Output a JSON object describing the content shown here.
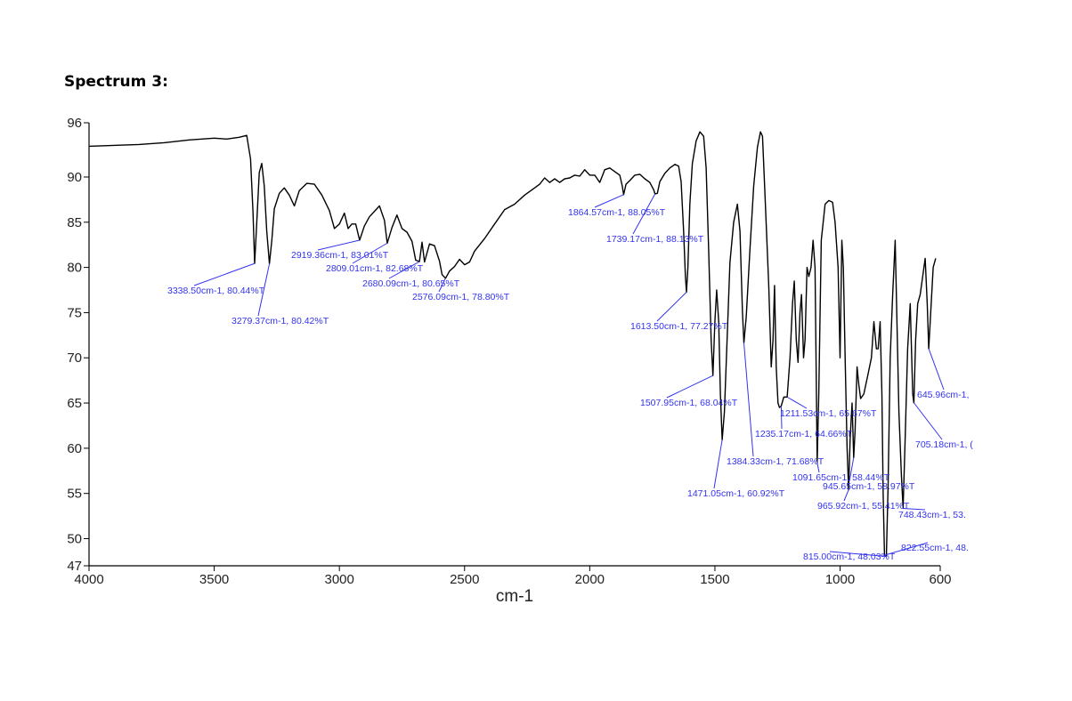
{
  "heading": "Spectrum 3:",
  "chart_data": {
    "type": "line",
    "title": "",
    "xlabel": "cm-1",
    "ylabel": "",
    "xlim": [
      4000,
      600
    ],
    "ylim": [
      47,
      96
    ],
    "x_reversed": true,
    "grid": false,
    "x_ticks": [
      4000,
      3500,
      3000,
      2500,
      2000,
      1500,
      1000,
      600
    ],
    "y_ticks": [
      96,
      90,
      85,
      80,
      75,
      70,
      65,
      60,
      55,
      50,
      47
    ],
    "series": [
      {
        "color": "#000000",
        "points": [
          [
            4000,
            93.4
          ],
          [
            3900,
            93.5
          ],
          [
            3800,
            93.6
          ],
          [
            3700,
            93.8
          ],
          [
            3600,
            94.1
          ],
          [
            3500,
            94.3
          ],
          [
            3450,
            94.2
          ],
          [
            3400,
            94.4
          ],
          [
            3370,
            94.6
          ],
          [
            3355,
            92
          ],
          [
            3345,
            86
          ],
          [
            3338.5,
            80.44
          ],
          [
            3330,
            85
          ],
          [
            3320,
            90.5
          ],
          [
            3310,
            91.5
          ],
          [
            3300,
            89
          ],
          [
            3290,
            84
          ],
          [
            3279.37,
            80.42
          ],
          [
            3270,
            83
          ],
          [
            3260,
            86.5
          ],
          [
            3240,
            88.2
          ],
          [
            3220,
            88.8
          ],
          [
            3200,
            88
          ],
          [
            3180,
            86.8
          ],
          [
            3160,
            88.5
          ],
          [
            3130,
            89.3
          ],
          [
            3100,
            89.2
          ],
          [
            3070,
            88
          ],
          [
            3040,
            86.3
          ],
          [
            3020,
            84.3
          ],
          [
            3000,
            84.8
          ],
          [
            2980,
            86
          ],
          [
            2965,
            84.3
          ],
          [
            2950,
            84.8
          ],
          [
            2935,
            84.8
          ],
          [
            2919.36,
            83.01
          ],
          [
            2900,
            84.6
          ],
          [
            2880,
            85.6
          ],
          [
            2860,
            86.2
          ],
          [
            2840,
            86.8
          ],
          [
            2820,
            85.2
          ],
          [
            2809.01,
            82.68
          ],
          [
            2790,
            84.4
          ],
          [
            2770,
            85.8
          ],
          [
            2750,
            84.3
          ],
          [
            2730,
            83.9
          ],
          [
            2710,
            82.9
          ],
          [
            2695,
            80.8
          ],
          [
            2680.09,
            80.65
          ],
          [
            2670,
            82.8
          ],
          [
            2660,
            80.6
          ],
          [
            2640,
            82.6
          ],
          [
            2620,
            82.4
          ],
          [
            2600,
            80.7
          ],
          [
            2590,
            79.2
          ],
          [
            2576.09,
            78.8
          ],
          [
            2560,
            79.6
          ],
          [
            2540,
            80.1
          ],
          [
            2520,
            80.9
          ],
          [
            2500,
            80.3
          ],
          [
            2480,
            80.6
          ],
          [
            2460,
            81.8
          ],
          [
            2420,
            83.2
          ],
          [
            2380,
            84.8
          ],
          [
            2340,
            86.4
          ],
          [
            2300,
            87
          ],
          [
            2260,
            88
          ],
          [
            2220,
            88.8
          ],
          [
            2200,
            89.2
          ],
          [
            2180,
            89.9
          ],
          [
            2160,
            89.4
          ],
          [
            2140,
            89.8
          ],
          [
            2120,
            89.4
          ],
          [
            2100,
            89.8
          ],
          [
            2080,
            89.9
          ],
          [
            2060,
            90.2
          ],
          [
            2040,
            90.1
          ],
          [
            2020,
            90.8
          ],
          [
            2000,
            90.2
          ],
          [
            1980,
            90.2
          ],
          [
            1960,
            89.4
          ],
          [
            1940,
            90.8
          ],
          [
            1920,
            91
          ],
          [
            1900,
            90.6
          ],
          [
            1880,
            90.2
          ],
          [
            1870,
            89
          ],
          [
            1864.57,
            88.05
          ],
          [
            1855,
            89.2
          ],
          [
            1840,
            89.6
          ],
          [
            1820,
            90.2
          ],
          [
            1800,
            90.3
          ],
          [
            1780,
            89.8
          ],
          [
            1760,
            89.4
          ],
          [
            1745,
            88.6
          ],
          [
            1739.17,
            88.13
          ],
          [
            1730,
            88.2
          ],
          [
            1720,
            89.5
          ],
          [
            1700,
            90.4
          ],
          [
            1680,
            91
          ],
          [
            1660,
            91.4
          ],
          [
            1645,
            91.2
          ],
          [
            1635,
            89.5
          ],
          [
            1625,
            84
          ],
          [
            1618,
            79
          ],
          [
            1613.5,
            77.27
          ],
          [
            1608,
            80
          ],
          [
            1600,
            87
          ],
          [
            1590,
            91.5
          ],
          [
            1575,
            94
          ],
          [
            1560,
            95
          ],
          [
            1545,
            94.5
          ],
          [
            1535,
            91
          ],
          [
            1525,
            82
          ],
          [
            1515,
            72
          ],
          [
            1507.95,
            68.04
          ],
          [
            1500,
            74
          ],
          [
            1493,
            77.5
          ],
          [
            1485,
            74
          ],
          [
            1478,
            66
          ],
          [
            1471.05,
            60.92
          ],
          [
            1462,
            64
          ],
          [
            1450,
            73
          ],
          [
            1440,
            80.5
          ],
          [
            1425,
            85
          ],
          [
            1410,
            87
          ],
          [
            1400,
            84
          ],
          [
            1390,
            75
          ],
          [
            1384.33,
            71.68
          ],
          [
            1375,
            74.5
          ],
          [
            1360,
            82
          ],
          [
            1345,
            89
          ],
          [
            1330,
            93.3
          ],
          [
            1318,
            95
          ],
          [
            1310,
            94.5
          ],
          [
            1300,
            88
          ],
          [
            1285,
            78
          ],
          [
            1275,
            69
          ],
          [
            1268,
            72
          ],
          [
            1262,
            78
          ],
          [
            1255,
            69
          ],
          [
            1248,
            65
          ],
          [
            1242,
            64.5
          ],
          [
            1235.17,
            64.66
          ],
          [
            1225,
            65.67
          ],
          [
            1211.53,
            65.67
          ],
          [
            1200,
            70
          ],
          [
            1190,
            76
          ],
          [
            1183,
            78.5
          ],
          [
            1175,
            72
          ],
          [
            1168,
            69.5
          ],
          [
            1160,
            75
          ],
          [
            1154,
            77
          ],
          [
            1146,
            70
          ],
          [
            1140,
            72
          ],
          [
            1132,
            80
          ],
          [
            1125,
            79
          ],
          [
            1116,
            80
          ],
          [
            1108,
            83
          ],
          [
            1100,
            80
          ],
          [
            1091.65,
            58.44
          ],
          [
            1085,
            66
          ],
          [
            1075,
            83
          ],
          [
            1060,
            87
          ],
          [
            1045,
            87.4
          ],
          [
            1030,
            87.2
          ],
          [
            1020,
            85
          ],
          [
            1008,
            80
          ],
          [
            1000,
            70
          ],
          [
            993,
            83
          ],
          [
            987,
            80
          ],
          [
            980,
            70
          ],
          [
            972,
            60
          ],
          [
            965.92,
            55.41
          ],
          [
            960,
            61
          ],
          [
            952,
            65
          ],
          [
            945.65,
            58.97
          ],
          [
            940,
            62
          ],
          [
            932,
            69
          ],
          [
            925,
            67
          ],
          [
            918,
            65.5
          ],
          [
            905,
            66
          ],
          [
            890,
            68
          ],
          [
            875,
            70
          ],
          [
            865,
            74
          ],
          [
            855,
            71
          ],
          [
            848,
            71
          ],
          [
            840,
            74
          ],
          [
            833,
            66
          ],
          [
            828,
            55
          ],
          [
            822.55,
            48.17
          ],
          [
            815,
            48.03
          ],
          [
            808,
            56
          ],
          [
            800,
            70
          ],
          [
            790,
            77
          ],
          [
            780,
            83
          ],
          [
            773,
            74
          ],
          [
            765,
            64
          ],
          [
            755,
            57
          ],
          [
            748.43,
            53.35
          ],
          [
            740,
            61
          ],
          [
            730,
            71
          ],
          [
            720,
            76
          ],
          [
            710,
            66
          ],
          [
            705.18,
            65.03
          ],
          [
            698,
            72
          ],
          [
            690,
            76
          ],
          [
            680,
            77
          ],
          [
            670,
            79
          ],
          [
            660,
            81
          ],
          [
            652,
            76
          ],
          [
            645.96,
            71.01
          ],
          [
            638,
            75
          ],
          [
            628,
            80
          ],
          [
            618,
            81
          ]
        ]
      }
    ],
    "annotations": [
      {
        "x": 3338.5,
        "y": 80.44,
        "label": "3338.50cm-1, 80.44%T"
      },
      {
        "x": 3279.37,
        "y": 80.42,
        "label": "3279.37cm-1, 80.42%T"
      },
      {
        "x": 2919.36,
        "y": 83.01,
        "label": "2919.36cm-1, 83.01%T"
      },
      {
        "x": 2809.01,
        "y": 82.68,
        "label": "2809.01cm-1, 82.68%T"
      },
      {
        "x": 2680.09,
        "y": 80.65,
        "label": "2680.09cm-1, 80.65%T"
      },
      {
        "x": 2576.09,
        "y": 78.8,
        "label": "2576.09cm-1, 78.80%T"
      },
      {
        "x": 1864.57,
        "y": 88.05,
        "label": "1864.57cm-1, 88.05%T"
      },
      {
        "x": 1739.17,
        "y": 88.13,
        "label": "1739.17cm-1, 88.13%T"
      },
      {
        "x": 1613.5,
        "y": 77.27,
        "label": "1613.50cm-1, 77.27%T"
      },
      {
        "x": 1507.95,
        "y": 68.04,
        "label": "1507.95cm-1, 68.04%T"
      },
      {
        "x": 1471.05,
        "y": 60.92,
        "label": "1471.05cm-1, 60.92%T"
      },
      {
        "x": 1384.33,
        "y": 71.68,
        "label": "1384.33cm-1, 71.68%T"
      },
      {
        "x": 1235.17,
        "y": 64.66,
        "label": "1235.17cm-1, 64.66%T"
      },
      {
        "x": 1211.53,
        "y": 65.67,
        "label": "1211.53cm-1, 65.67%T"
      },
      {
        "x": 1091.65,
        "y": 58.44,
        "label": "1091.65cm-1, 58.44%T"
      },
      {
        "x": 965.92,
        "y": 55.41,
        "label": "965.92cm-1, 55.41%T"
      },
      {
        "x": 945.65,
        "y": 58.97,
        "label": "945.65cm-1, 58.97%T"
      },
      {
        "x": 822.55,
        "y": 48.17,
        "label": "822.55cm-1, 48."
      },
      {
        "x": 815,
        "y": 48.03,
        "label": "815.00cm-1, 48.03%T"
      },
      {
        "x": 748.43,
        "y": 53.35,
        "label": "748.43cm-1, 53."
      },
      {
        "x": 705.18,
        "y": 65.03,
        "label": "705.18cm-1, ("
      },
      {
        "x": 645.96,
        "y": 71.01,
        "label": "645.96cm-1, "
      }
    ]
  }
}
